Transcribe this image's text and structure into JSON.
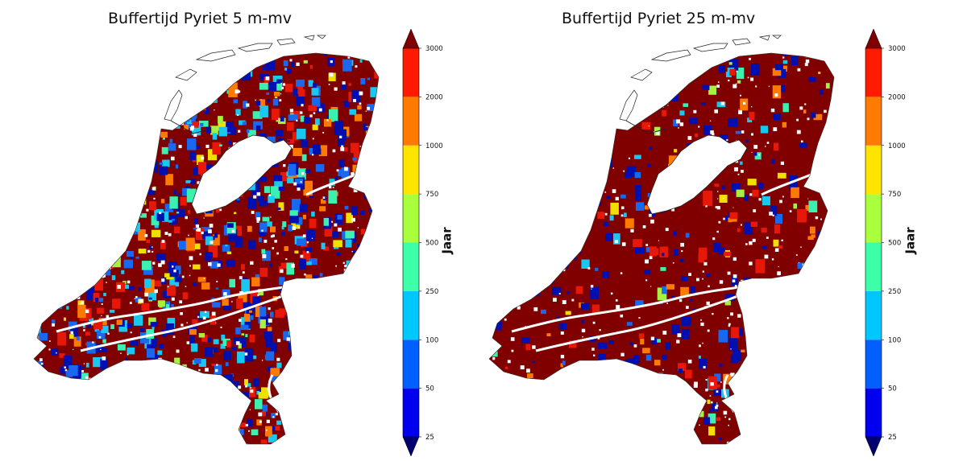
{
  "panels": [
    {
      "title": "Buffertijd Pyriet 5 m-mv",
      "mix": {
        "darkred": 0.3,
        "red": 0.1,
        "orange": 0.06,
        "blue": 0.22,
        "dodger": 0.14,
        "cyan": 0.08,
        "aqua": 0.05,
        "lime": 0.03,
        "yellow": 0.02
      }
    },
    {
      "title": "Buffertijd Pyriet 25 m-mv",
      "mix": {
        "darkred": 0.72,
        "red": 0.05,
        "orange": 0.03,
        "blue": 0.12,
        "dodger": 0.03,
        "cyan": 0.02,
        "aqua": 0.01,
        "lime": 0.01,
        "yellow": 0.01
      }
    }
  ],
  "colorbar": {
    "label": "Jaar",
    "ticks": [
      "25",
      "50",
      "100",
      "250",
      "500",
      "750",
      "1000",
      "2000",
      "3000"
    ],
    "bands": [
      "#0000ee",
      "#0060ff",
      "#00c8ff",
      "#3cffa8",
      "#aaff3c",
      "#ffe400",
      "#ff7a00",
      "#ff1a00"
    ],
    "under_color": "#00006e",
    "over_color": "#7f0000"
  },
  "map_colors": {
    "darkred": "#800000",
    "red": "#e81808",
    "orange": "#ff7a00",
    "yellow": "#f0e000",
    "lime": "#a8f040",
    "aqua": "#3cf0b0",
    "cyan": "#18c8f0",
    "dodger": "#1868f0",
    "blue": "#0010b0"
  }
}
